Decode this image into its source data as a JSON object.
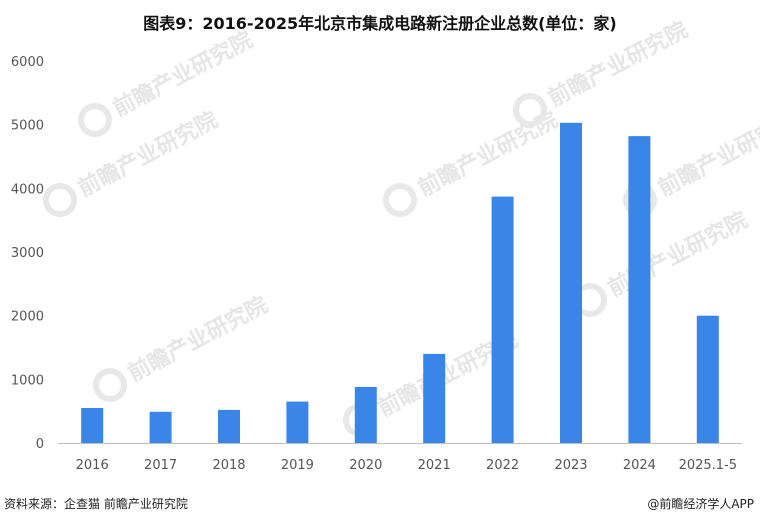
{
  "title": "图表9：2016-2025年北京市集成电路新注册企业总数(单位：家)",
  "source": "资料来源：企查猫 前瞻产业研究院",
  "brand": "@前瞻经济学人APP",
  "watermark": "前瞻产业研究院",
  "chart_data": {
    "type": "bar",
    "categories": [
      "2016",
      "2017",
      "2018",
      "2019",
      "2020",
      "2021",
      "2022",
      "2023",
      "2024",
      "2025.1-5"
    ],
    "values": [
      550,
      490,
      520,
      650,
      880,
      1400,
      3870,
      5030,
      4820,
      2000
    ],
    "ylim": [
      0,
      6000
    ],
    "yticks": [
      0,
      1000,
      2000,
      3000,
      4000,
      5000,
      6000
    ],
    "bar_color": "#3a86e8",
    "grid": false,
    "legend": "none"
  }
}
